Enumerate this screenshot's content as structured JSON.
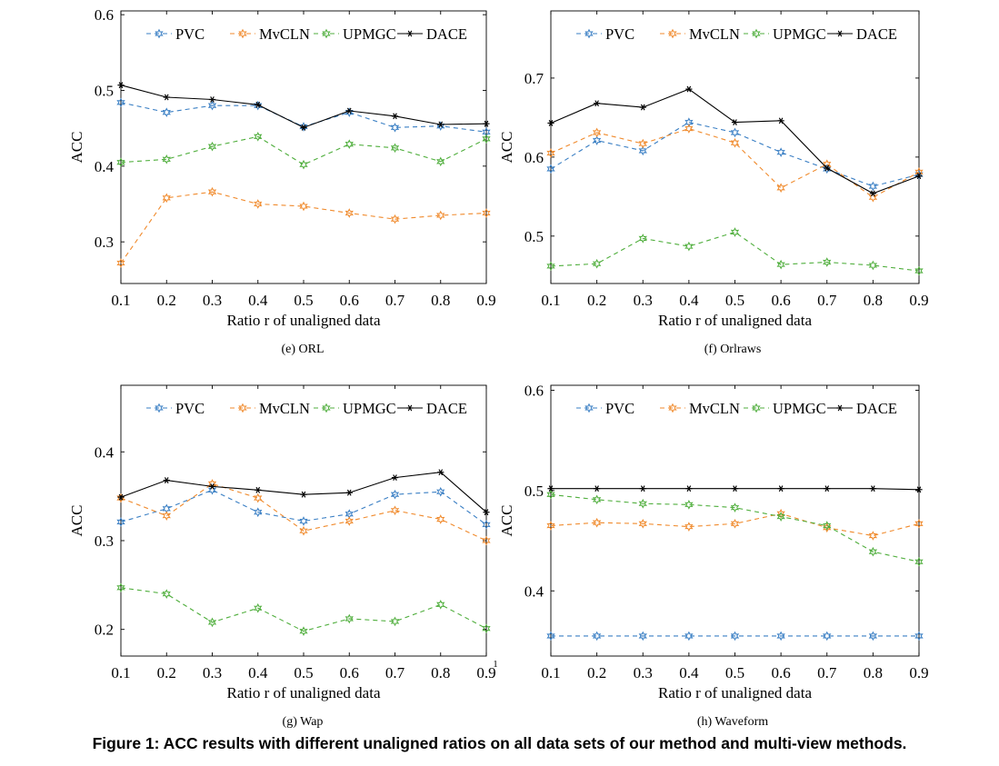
{
  "caption": "Figure 1: ACC results with different unaligned ratios on all data sets of our method and multi-view methods.",
  "legend_labels": [
    "PVC",
    "MvCLN",
    "UPMGC",
    "DACE"
  ],
  "colors": {
    "PVC": "#3a7fc4",
    "MvCLN": "#f08a2c",
    "UPMGC": "#4fae3c",
    "DACE": "#000000"
  },
  "chart_data": [
    {
      "type": "line",
      "panel_label": "(e)  ORL",
      "xlabel": "Ratio r of unaligned data",
      "ylabel": "ACC",
      "x": [
        0.1,
        0.2,
        0.3,
        0.4,
        0.5,
        0.6,
        0.7,
        0.8,
        0.9
      ],
      "xticks": [
        "0.1",
        "0.2",
        "0.3",
        "0.4",
        "0.5",
        "0.6",
        "0.7",
        "0.8",
        "0.9"
      ],
      "ylim": [
        0.245,
        0.605
      ],
      "yticks": [
        0.3,
        0.4,
        0.5,
        0.6
      ],
      "ytick_labels": [
        "0.3",
        "0.4",
        "0.5",
        "0.6"
      ],
      "legend": "top",
      "series": [
        {
          "name": "PVC",
          "values": [
            0.484,
            0.471,
            0.48,
            0.48,
            0.452,
            0.471,
            0.451,
            0.453,
            0.445
          ]
        },
        {
          "name": "MvCLN",
          "values": [
            0.272,
            0.358,
            0.366,
            0.35,
            0.347,
            0.338,
            0.33,
            0.335,
            0.338
          ]
        },
        {
          "name": "UPMGC",
          "values": [
            0.405,
            0.409,
            0.426,
            0.439,
            0.402,
            0.429,
            0.424,
            0.406,
            0.436
          ]
        },
        {
          "name": "DACE",
          "values": [
            0.507,
            0.491,
            0.488,
            0.481,
            0.451,
            0.473,
            0.466,
            0.455,
            0.456
          ]
        }
      ]
    },
    {
      "type": "line",
      "panel_label": "(f)  Orlraws",
      "xlabel": "Ratio r of unaligned data",
      "ylabel": "ACC",
      "x": [
        0.1,
        0.2,
        0.3,
        0.4,
        0.5,
        0.6,
        0.7,
        0.8,
        0.9
      ],
      "xticks": [
        "0.1",
        "0.2",
        "0.3",
        "0.4",
        "0.5",
        "0.6",
        "0.7",
        "0.8",
        "0.9"
      ],
      "ylim": [
        0.44,
        0.785
      ],
      "yticks": [
        0.5,
        0.6,
        0.7
      ],
      "ytick_labels": [
        "0.5",
        "0.6",
        "0.7"
      ],
      "legend": "top",
      "series": [
        {
          "name": "PVC",
          "values": [
            0.585,
            0.621,
            0.608,
            0.644,
            0.631,
            0.606,
            0.585,
            0.563,
            0.578
          ]
        },
        {
          "name": "MvCLN",
          "values": [
            0.605,
            0.631,
            0.617,
            0.636,
            0.618,
            0.561,
            0.591,
            0.549,
            0.581
          ]
        },
        {
          "name": "UPMGC",
          "values": [
            0.462,
            0.465,
            0.497,
            0.487,
            0.505,
            0.464,
            0.467,
            0.463,
            0.456
          ]
        },
        {
          "name": "DACE",
          "values": [
            0.643,
            0.668,
            0.663,
            0.686,
            0.644,
            0.646,
            0.586,
            0.554,
            0.576
          ]
        }
      ]
    },
    {
      "type": "line",
      "panel_label": "(g)  Wap",
      "xlabel": "Ratio r of unaligned data",
      "ylabel": "ACC",
      "x": [
        0.1,
        0.2,
        0.3,
        0.4,
        0.5,
        0.6,
        0.7,
        0.8,
        0.9
      ],
      "xticks": [
        "0.1",
        "0.2",
        "0.3",
        "0.4",
        "0.5",
        "0.6",
        "0.7",
        "0.8",
        "0.9"
      ],
      "x_corner_label": "1",
      "ylim": [
        0.17,
        0.475
      ],
      "yticks": [
        0.2,
        0.3,
        0.4
      ],
      "ytick_labels": [
        "0.2",
        "0.3",
        "0.4"
      ],
      "legend": "top",
      "series": [
        {
          "name": "PVC",
          "values": [
            0.321,
            0.336,
            0.357,
            0.332,
            0.322,
            0.33,
            0.352,
            0.355,
            0.318
          ]
        },
        {
          "name": "MvCLN",
          "values": [
            0.348,
            0.328,
            0.364,
            0.348,
            0.311,
            0.322,
            0.334,
            0.324,
            0.3
          ]
        },
        {
          "name": "UPMGC",
          "values": [
            0.247,
            0.24,
            0.208,
            0.224,
            0.198,
            0.212,
            0.209,
            0.228,
            0.201
          ]
        },
        {
          "name": "DACE",
          "values": [
            0.349,
            0.368,
            0.361,
            0.357,
            0.352,
            0.354,
            0.371,
            0.377,
            0.332
          ]
        }
      ]
    },
    {
      "type": "line",
      "panel_label": "(h)  Waveform",
      "xlabel": "Ratio r of unaligned data",
      "ylabel": "ACC",
      "x": [
        0.1,
        0.2,
        0.3,
        0.4,
        0.5,
        0.6,
        0.7,
        0.8,
        0.9
      ],
      "xticks": [
        "0.1",
        "0.2",
        "0.3",
        "0.4",
        "0.5",
        "0.6",
        "0.7",
        "0.8",
        "0.9"
      ],
      "ylim": [
        0.335,
        0.605
      ],
      "yticks": [
        0.4,
        0.5,
        0.6
      ],
      "ytick_labels": [
        "0.4",
        "0.5",
        "0.6"
      ],
      "legend": "top",
      "series": [
        {
          "name": "PVC",
          "values": [
            0.355,
            0.355,
            0.355,
            0.355,
            0.355,
            0.355,
            0.355,
            0.355,
            0.355
          ]
        },
        {
          "name": "MvCLN",
          "values": [
            0.465,
            0.468,
            0.467,
            0.464,
            0.467,
            0.477,
            0.463,
            0.455,
            0.467
          ]
        },
        {
          "name": "UPMGC",
          "values": [
            0.496,
            0.491,
            0.487,
            0.486,
            0.483,
            0.474,
            0.465,
            0.439,
            0.429
          ]
        },
        {
          "name": "DACE",
          "values": [
            0.502,
            0.502,
            0.502,
            0.502,
            0.502,
            0.502,
            0.502,
            0.502,
            0.501
          ]
        }
      ]
    }
  ]
}
